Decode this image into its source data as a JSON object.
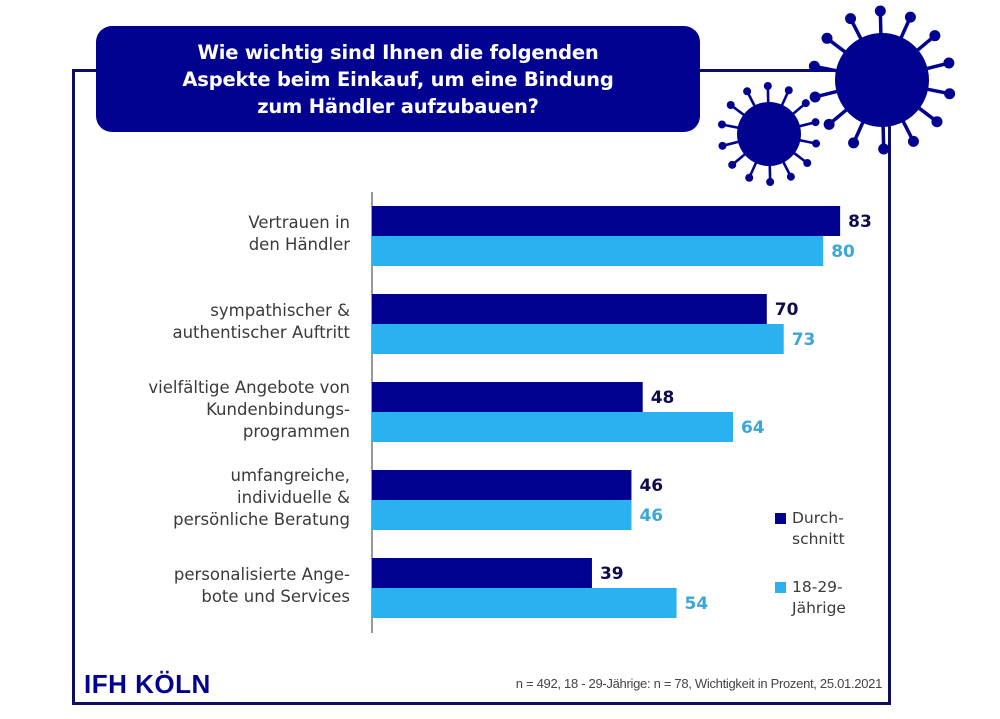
{
  "title": "Wie wichtig sind Ihnen die folgenden\nAspekte beim Einkauf, um eine Bindung\nzum Händler aufzubauen?",
  "colors": {
    "frame": "#0d0d66",
    "title_bg": "#020290",
    "series_durchschnitt": "#020290",
    "series_18_29": "#29b2ef",
    "label_durchschnitt": "#0d0d4d",
    "label_18_29": "#3aa6d9",
    "virus": "#020290"
  },
  "decorations": [
    "virus-icon-large",
    "virus-icon-small"
  ],
  "chart_data": {
    "type": "bar",
    "orientation": "horizontal",
    "title": "Wie wichtig sind Ihnen die folgenden Aspekte beim Einkauf, um eine Bindung zum Händler aufzubauen?",
    "xlabel": "",
    "ylabel": "",
    "unit": "Prozent",
    "xlim": [
      0,
      100
    ],
    "grid": false,
    "legend_position": "bottom-right",
    "categories": [
      "Vertrauen in\nden Händler",
      "sympathischer &\nauthentischer Auftritt",
      "vielfältige Angebote von\nKundenbindungs-\nprogrammen",
      "umfangreiche,\nindividuelle &\npersönliche Beratung",
      "personalisierte Ange-\nbote und Services"
    ],
    "series": [
      {
        "name": "Durch-\nschnitt",
        "values": [
          83,
          70,
          48,
          46,
          39
        ]
      },
      {
        "name": "18-29-\nJährige",
        "values": [
          80,
          73,
          64,
          46,
          54
        ]
      }
    ]
  },
  "footer": {
    "logo": "IFH KÖLN",
    "note": "n = 492, 18 - 29-Jährige: n = 78, Wichtigkeit in Prozent, 25.01.2021"
  }
}
